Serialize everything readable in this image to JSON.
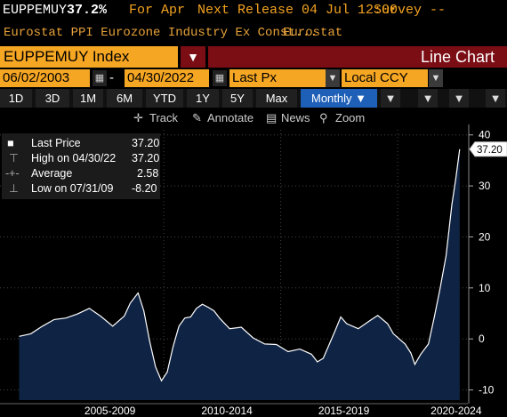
{
  "header": {
    "ticker": "EUPPEMUY",
    "value": "37.2%",
    "period_label": "For Apr",
    "next_release": "Next Release 04 Jul 12:00",
    "survey": "Survey --"
  },
  "subheader": {
    "description": "Eurostat PPI Eurozone Industry Ex Const...",
    "source": "Eurostat"
  },
  "security": {
    "ticker_field": "EUPPEMUY Index",
    "chart_type": "Line Chart"
  },
  "range": {
    "start_date": "06/02/2003",
    "end_date": "04/30/2022",
    "price_field": "Last Px",
    "currency": "Local CCY"
  },
  "periods": [
    "1D",
    "3D",
    "1M",
    "6M",
    "YTD",
    "1Y",
    "5Y",
    "Max"
  ],
  "frequency": "Monthly ▼",
  "tools": {
    "track": "Track",
    "annotate": "Annotate",
    "news": "News",
    "zoom": "Zoom"
  },
  "legend": {
    "last_price_label": "Last Price",
    "last_price_value": "37.20",
    "high_label": "High on 04/30/22",
    "high_value": "37.20",
    "average_label": "Average",
    "average_value": "2.58",
    "low_label": "Low on 07/31/09",
    "low_value": "-8.20"
  },
  "colors": {
    "amber": "#f5a623",
    "dark_red": "#7b0d14",
    "active_tab": "#1e5fb7",
    "area_fill": "#0f2344",
    "line": "#ffffff"
  },
  "chart_data": {
    "type": "area",
    "series": [
      {
        "name": "Last Price",
        "x": [
          "2003-06",
          "2003-12",
          "2004-06",
          "2004-12",
          "2005-06",
          "2005-12",
          "2006-06",
          "2006-12",
          "2007-06",
          "2007-12",
          "2008-03",
          "2008-07",
          "2008-10",
          "2009-01",
          "2009-04",
          "2009-07",
          "2009-10",
          "2010-01",
          "2010-04",
          "2010-07",
          "2010-10",
          "2011-01",
          "2011-04",
          "2011-07",
          "2011-10",
          "2012-01",
          "2012-06",
          "2012-12",
          "2013-06",
          "2013-12",
          "2014-06",
          "2014-12",
          "2015-06",
          "2015-12",
          "2016-03",
          "2016-06",
          "2016-12",
          "2017-03",
          "2017-06",
          "2017-12",
          "2018-06",
          "2018-10",
          "2019-03",
          "2019-06",
          "2019-12",
          "2020-03",
          "2020-05",
          "2020-08",
          "2020-12",
          "2021-03",
          "2021-06",
          "2021-09",
          "2021-12",
          "2022-02",
          "2022-04"
        ],
        "values": [
          0.5,
          1.0,
          2.5,
          3.8,
          4.1,
          4.9,
          6.0,
          4.4,
          2.5,
          4.5,
          7.0,
          9.0,
          5.5,
          -0.5,
          -5.5,
          -8.2,
          -6.5,
          -1.5,
          2.5,
          4.1,
          4.3,
          6.0,
          6.8,
          6.2,
          5.5,
          4.0,
          2.0,
          2.3,
          0.2,
          -1.0,
          -1.1,
          -2.5,
          -2.0,
          -3.0,
          -4.5,
          -3.8,
          1.5,
          4.3,
          3.0,
          2.0,
          3.6,
          4.6,
          3.0,
          1.0,
          -1.0,
          -2.8,
          -5.0,
          -3.0,
          -1.0,
          4.3,
          10.0,
          16.3,
          26.3,
          31.4,
          37.2
        ]
      }
    ],
    "x_tick_labels": [
      "2005-2009",
      "2010-2014",
      "2015-2019",
      "2020-2024"
    ],
    "y_ticks": [
      -10,
      0,
      10,
      20,
      30,
      40
    ],
    "ylim": [
      -12,
      41
    ],
    "last_value_label": "37.20"
  }
}
